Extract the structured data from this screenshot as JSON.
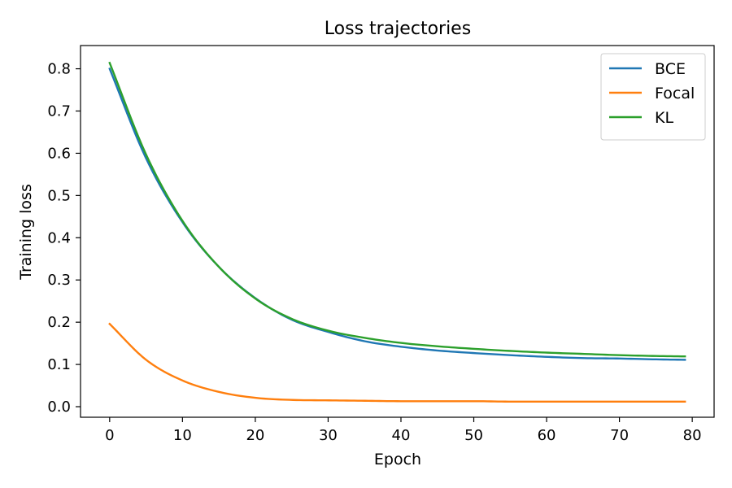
{
  "chart_data": {
    "type": "line",
    "title": "Loss trajectories",
    "xlabel": "Epoch",
    "ylabel": "Training loss",
    "xlim": [
      -4,
      83
    ],
    "ylim": [
      -0.025,
      0.855
    ],
    "xticks": [
      0,
      10,
      20,
      30,
      40,
      50,
      60,
      70,
      80
    ],
    "yticks": [
      0.0,
      0.1,
      0.2,
      0.3,
      0.4,
      0.5,
      0.6,
      0.7,
      0.8
    ],
    "ytick_labels": [
      "0.0",
      "0.1",
      "0.2",
      "0.3",
      "0.4",
      "0.5",
      "0.6",
      "0.7",
      "0.8"
    ],
    "grid": false,
    "legend_position": "top-right",
    "x": [
      0,
      5,
      10,
      15,
      20,
      25,
      30,
      35,
      40,
      45,
      50,
      55,
      60,
      65,
      70,
      75,
      79
    ],
    "series": [
      {
        "name": "BCE",
        "color": "#1f77b4",
        "values": [
          0.8,
          0.588,
          0.437,
          0.331,
          0.257,
          0.206,
          0.177,
          0.155,
          0.142,
          0.133,
          0.127,
          0.122,
          0.118,
          0.115,
          0.114,
          0.112,
          0.111
        ]
      },
      {
        "name": "Focal",
        "color": "#ff7f0e",
        "values": [
          0.196,
          0.111,
          0.062,
          0.035,
          0.021,
          0.016,
          0.015,
          0.014,
          0.013,
          0.013,
          0.013,
          0.012,
          0.012,
          0.012,
          0.012,
          0.012,
          0.012
        ]
      },
      {
        "name": "KL",
        "color": "#2ca02c",
        "values": [
          0.814,
          0.597,
          0.44,
          0.331,
          0.256,
          0.208,
          0.18,
          0.163,
          0.151,
          0.143,
          0.137,
          0.132,
          0.128,
          0.125,
          0.122,
          0.12,
          0.119
        ]
      }
    ]
  }
}
